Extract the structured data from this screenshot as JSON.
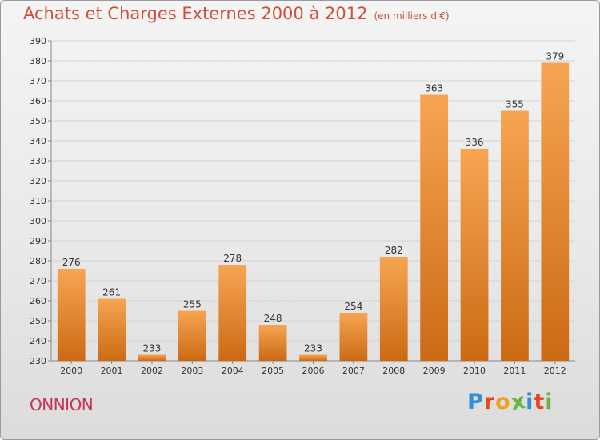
{
  "header": {
    "title": "Achats et Charges Externes 2000 à 2012",
    "subtitle": "(en milliers d'€)"
  },
  "footer": {
    "commune": "ONNION",
    "brand": "Proxiti"
  },
  "colors": {
    "bar_light": "#f7a552",
    "bar_dark": "#cc6a14",
    "title": "#d0503c",
    "commune": "#c8325a",
    "brand_letters": [
      "#2f8fd8",
      "#e8451e",
      "#f0a01e",
      "#6cb33f",
      "#2f8fd8",
      "#e8451e",
      "#6cb33f"
    ]
  },
  "chart_data": {
    "type": "bar",
    "categories": [
      "2000",
      "2001",
      "2002",
      "2003",
      "2004",
      "2005",
      "2006",
      "2007",
      "2008",
      "2009",
      "2010",
      "2011",
      "2012"
    ],
    "values": [
      276,
      261,
      233,
      255,
      278,
      248,
      233,
      254,
      282,
      363,
      336,
      355,
      379
    ],
    "title": "Achats et Charges Externes 2000 à 2012",
    "ylim": [
      230,
      390
    ],
    "yticks": [
      230,
      240,
      250,
      260,
      270,
      280,
      290,
      300,
      310,
      320,
      330,
      340,
      350,
      360,
      370,
      380,
      390
    ],
    "grid": true,
    "data_labels": true
  }
}
